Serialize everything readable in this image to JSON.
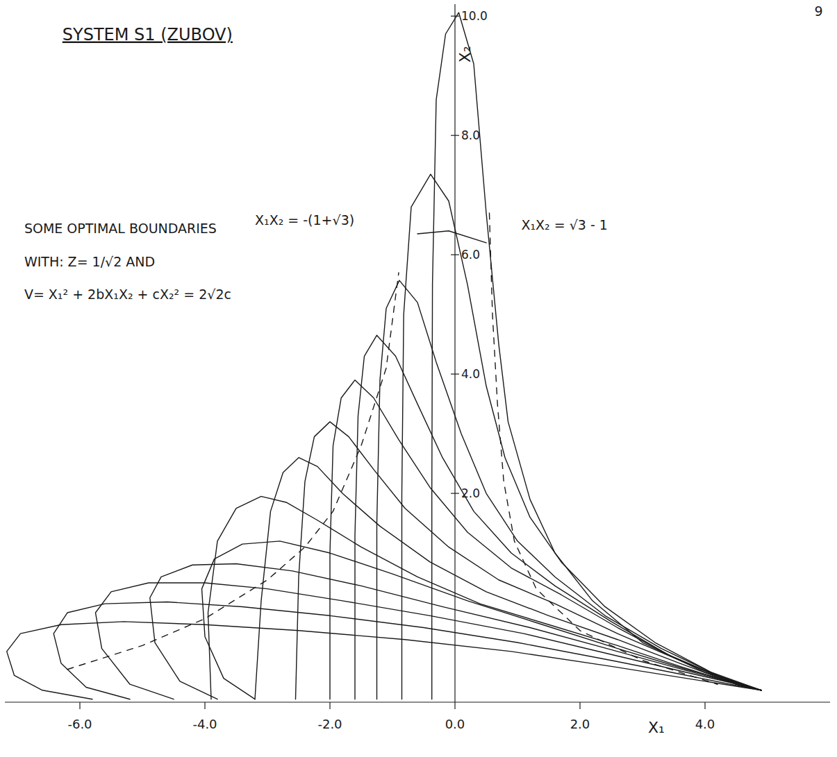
{
  "chart_data": {
    "type": "line",
    "title": "SYSTEM S1 (ZUBOV)",
    "x_label": "X₁",
    "y_label": "X₂",
    "color": "#1a1a1a",
    "grid": false,
    "xlim": [
      -7.2,
      6.0
    ],
    "ylim": [
      -1.5,
      10.2
    ],
    "xticks": [
      {
        "value": -6,
        "label": "-6.0"
      },
      {
        "value": -4,
        "label": "-4.0"
      },
      {
        "value": -2,
        "label": "-2.0"
      },
      {
        "value": 0,
        "label": "0.0"
      },
      {
        "value": 2,
        "label": "2.0"
      },
      {
        "value": 4,
        "label": "4.0"
      }
    ],
    "yticks": [
      {
        "value": 2,
        "label": "2.0"
      },
      {
        "value": 4,
        "label": "4.0"
      },
      {
        "value": 6,
        "label": "6.0"
      },
      {
        "value": 8,
        "label": "8.0"
      },
      {
        "value": 10,
        "label": "10.0"
      }
    ],
    "annotations": [
      {
        "text": "9",
        "x": 5.75,
        "y": 10.0
      },
      {
        "text": "SOME OPTIMAL BOUNDARIES",
        "x": -6.89,
        "y": 6.36
      },
      {
        "text": "WITH: Z= 1/√2  AND",
        "x": -6.89,
        "y": 5.8
      },
      {
        "text": "V= X₁² + 2bX₁X₂ + cX₂² = 2√2c",
        "x": -6.89,
        "y": 5.26
      },
      {
        "text": "X₁X₂ = -(1+√3)",
        "x": -3.2,
        "y": 6.5
      },
      {
        "text": "X₁X₂ = √3 - 1",
        "x": 1.06,
        "y": 6.42
      }
    ],
    "series": [
      {
        "x": [
          -0.37,
          -0.37,
          -0.36,
          -0.3,
          -0.15,
          0.06,
          0.3,
          0.5,
          0.7,
          0.85,
          1.2,
          1.6,
          2.2,
          3.0,
          4.0,
          4.9
        ],
        "values": [
          -1.45,
          2.0,
          5.5,
          8.6,
          9.7,
          10.06,
          9.2,
          6.7,
          4.5,
          3.2,
          1.9,
          1.0,
          0.2,
          -0.5,
          -1.0,
          -1.3
        ]
      },
      {
        "x": [
          -0.85,
          -0.85,
          -0.82,
          -0.7,
          -0.39,
          -0.1,
          0.2,
          0.5,
          0.8,
          1.2,
          1.7,
          2.4,
          3.2,
          4.1,
          4.9
        ],
        "values": [
          -1.45,
          2.0,
          5.0,
          6.8,
          7.35,
          6.9,
          5.5,
          3.8,
          2.6,
          1.6,
          0.85,
          0.1,
          -0.5,
          -1.0,
          -1.3
        ]
      },
      {
        "x": [
          -1.25,
          -1.25,
          -1.2,
          -1.1,
          -0.89,
          -0.6,
          -0.3,
          0.1,
          0.5,
          1.0,
          1.6,
          2.4,
          3.3,
          4.2,
          4.9
        ],
        "values": [
          -1.45,
          1.5,
          3.9,
          5.1,
          5.57,
          5.2,
          4.2,
          3.0,
          2.0,
          1.2,
          0.6,
          -0.05,
          -0.6,
          -1.05,
          -1.3
        ]
      },
      {
        "x": [
          -1.6,
          -1.6,
          -1.55,
          -1.45,
          -1.25,
          -0.95,
          -0.6,
          -0.2,
          0.3,
          0.9,
          1.6,
          2.5,
          3.4,
          4.3,
          4.9
        ],
        "values": [
          -1.45,
          1.3,
          3.3,
          4.3,
          4.65,
          4.3,
          3.5,
          2.6,
          1.7,
          1.0,
          0.45,
          -0.15,
          -0.7,
          -1.1,
          -1.3
        ]
      },
      {
        "x": [
          -2.0,
          -2.0,
          -1.95,
          -1.82,
          -1.6,
          -1.3,
          -0.9,
          -0.4,
          0.2,
          0.9,
          1.7,
          2.6,
          3.5,
          4.4,
          4.9
        ],
        "values": [
          -1.45,
          1.0,
          2.8,
          3.6,
          3.9,
          3.6,
          2.9,
          2.1,
          1.35,
          0.75,
          0.3,
          -0.25,
          -0.75,
          -1.15,
          -1.3
        ]
      },
      {
        "x": [
          -2.55,
          -2.5,
          -2.4,
          -2.25,
          -2.0,
          -1.7,
          -1.3,
          -0.8,
          -0.1,
          0.7,
          1.6,
          2.6,
          3.6,
          4.5,
          4.9
        ],
        "values": [
          -1.45,
          0.6,
          2.2,
          2.95,
          3.2,
          2.95,
          2.4,
          1.75,
          1.1,
          0.55,
          0.15,
          -0.35,
          -0.8,
          -1.2,
          -1.3
        ]
      },
      {
        "x": [
          -3.2,
          -3.1,
          -2.95,
          -2.75,
          -2.5,
          -2.2,
          -1.8,
          -1.2,
          -0.4,
          0.5,
          1.5,
          2.6,
          3.6,
          4.5,
          4.9
        ],
        "values": [
          -1.45,
          0.2,
          1.7,
          2.35,
          2.6,
          2.45,
          2.0,
          1.45,
          0.85,
          0.35,
          -0.05,
          -0.45,
          -0.85,
          -1.2,
          -1.3
        ]
      },
      {
        "x": [
          -3.9,
          -3.95,
          -3.8,
          -3.5,
          -3.1,
          -2.7,
          -2.2,
          -1.5,
          -0.6,
          0.4,
          1.5,
          2.6,
          3.6,
          4.5,
          4.9
        ],
        "values": [
          -1.45,
          0.0,
          1.2,
          1.75,
          1.95,
          1.85,
          1.55,
          1.1,
          0.6,
          0.15,
          -0.2,
          -0.55,
          -0.9,
          -1.2,
          -1.3
        ]
      },
      {
        "x": [
          -3.2,
          -3.7,
          -4.0,
          -4.05,
          -3.85,
          -3.4,
          -2.8,
          -2.0,
          -1.0,
          0.2,
          1.4,
          2.6,
          3.7,
          4.6,
          4.9
        ],
        "values": [
          -1.45,
          -1.1,
          -0.4,
          0.4,
          0.9,
          1.15,
          1.2,
          1.0,
          0.65,
          0.2,
          -0.2,
          -0.6,
          -0.95,
          -1.2,
          -1.3
        ]
      },
      {
        "x": [
          -3.8,
          -4.4,
          -4.8,
          -4.88,
          -4.7,
          -4.2,
          -3.5,
          -2.6,
          -1.5,
          -0.2,
          1.2,
          2.5,
          3.7,
          4.6,
          4.9
        ],
        "values": [
          -1.45,
          -1.15,
          -0.5,
          0.25,
          0.6,
          0.8,
          0.82,
          0.7,
          0.45,
          0.1,
          -0.25,
          -0.62,
          -0.97,
          -1.22,
          -1.3
        ]
      },
      {
        "x": [
          -4.5,
          -5.2,
          -5.65,
          -5.75,
          -5.5,
          -4.9,
          -4.0,
          -3.0,
          -1.8,
          -0.4,
          1.1,
          2.5,
          3.7,
          4.6,
          4.9
        ],
        "values": [
          -1.45,
          -1.2,
          -0.6,
          0.0,
          0.35,
          0.5,
          0.5,
          0.4,
          0.2,
          -0.05,
          -0.35,
          -0.7,
          -1.0,
          -1.22,
          -1.3
        ]
      },
      {
        "x": [
          -5.2,
          -5.9,
          -6.3,
          -6.42,
          -6.2,
          -5.6,
          -4.6,
          -3.4,
          -2.0,
          -0.5,
          1.0,
          2.5,
          3.7,
          4.6,
          4.9
        ],
        "values": [
          -1.45,
          -1.25,
          -0.85,
          -0.35,
          0.0,
          0.15,
          0.18,
          0.1,
          -0.05,
          -0.25,
          -0.5,
          -0.8,
          -1.05,
          -1.24,
          -1.3
        ]
      },
      {
        "x": [
          -5.8,
          -6.6,
          -7.05,
          -7.17,
          -6.95,
          -6.3,
          -5.3,
          -4.0,
          -2.5,
          -0.8,
          0.9,
          2.5,
          3.7,
          4.6,
          4.9
        ],
        "values": [
          -1.45,
          -1.3,
          -1.05,
          -0.65,
          -0.35,
          -0.2,
          -0.15,
          -0.2,
          -0.3,
          -0.45,
          -0.65,
          -0.9,
          -1.1,
          -1.25,
          -1.3
        ]
      },
      {
        "x": [
          -6.2,
          -5.0,
          -4.0,
          -3.0,
          -2.4,
          -1.95,
          -1.5,
          -1.1,
          -0.9
        ],
        "values": [
          -0.95,
          -0.55,
          -0.1,
          0.55,
          1.1,
          1.7,
          2.8,
          4.1,
          5.7
        ],
        "line_style": "dashed"
      },
      {
        "x": [
          0.55,
          0.6,
          0.68,
          0.78,
          0.95,
          1.3,
          2.0,
          3.0,
          4.2
        ],
        "values": [
          6.7,
          5.0,
          3.5,
          2.2,
          1.2,
          0.4,
          -0.3,
          -0.8,
          -1.2
        ],
        "line_style": "dashed"
      },
      {
        "x": [
          -0.6,
          -0.1,
          0.5
        ],
        "values": [
          6.35,
          6.4,
          6.2
        ]
      }
    ]
  }
}
